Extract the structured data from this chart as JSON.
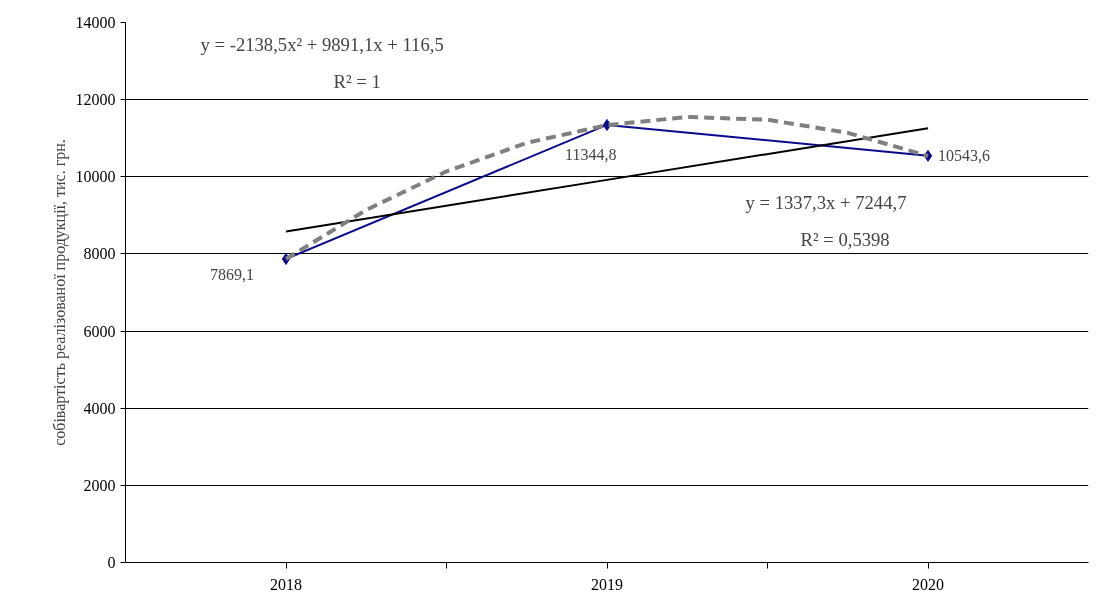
{
  "chart_data": {
    "type": "line",
    "ylabel": "собівартість реалізованої продукції, тис. грн.",
    "x": [
      2018,
      2019,
      2020
    ],
    "xlim": [
      2017.5,
      2020.5
    ],
    "xticks": [
      2018,
      {
        "value": 2018.5,
        "label": null
      },
      2019,
      {
        "value": 2019.5,
        "label": null
      },
      2020
    ],
    "series": [
      {
        "color": "#0a0a8c",
        "values": [
          7869.1,
          11344.8,
          10543.6
        ],
        "marker": "diamond",
        "line_style": "solid",
        "value_labels": [
          "7869,1",
          "11344,8",
          "10543,6"
        ]
      },
      {
        "color": "#000000",
        "values": [
          8580,
          9920,
          11260
        ],
        "marker": "none",
        "line_style": "solid"
      },
      {
        "color": "#808080",
        "x": [
          2018,
          2018.25,
          2018.5,
          2018.75,
          2019,
          2019.25,
          2019.5,
          2019.75,
          2020
        ],
        "values": [
          7870,
          9140,
          10140,
          10880,
          11340,
          11550,
          11480,
          11140,
          10540
        ],
        "marker": "none",
        "line_style": "dashed"
      }
    ],
    "annotations": [
      "y = -2138,5x² + 9891,1x + 116,5",
      "R² = 1",
      "y = 1337,3x + 7244,7",
      "R² = 0,5398"
    ],
    "ylim": [
      0,
      14000
    ],
    "yticks": [
      0,
      2000,
      4000,
      6000,
      8000,
      10000,
      12000,
      14000
    ],
    "grid": "y"
  }
}
